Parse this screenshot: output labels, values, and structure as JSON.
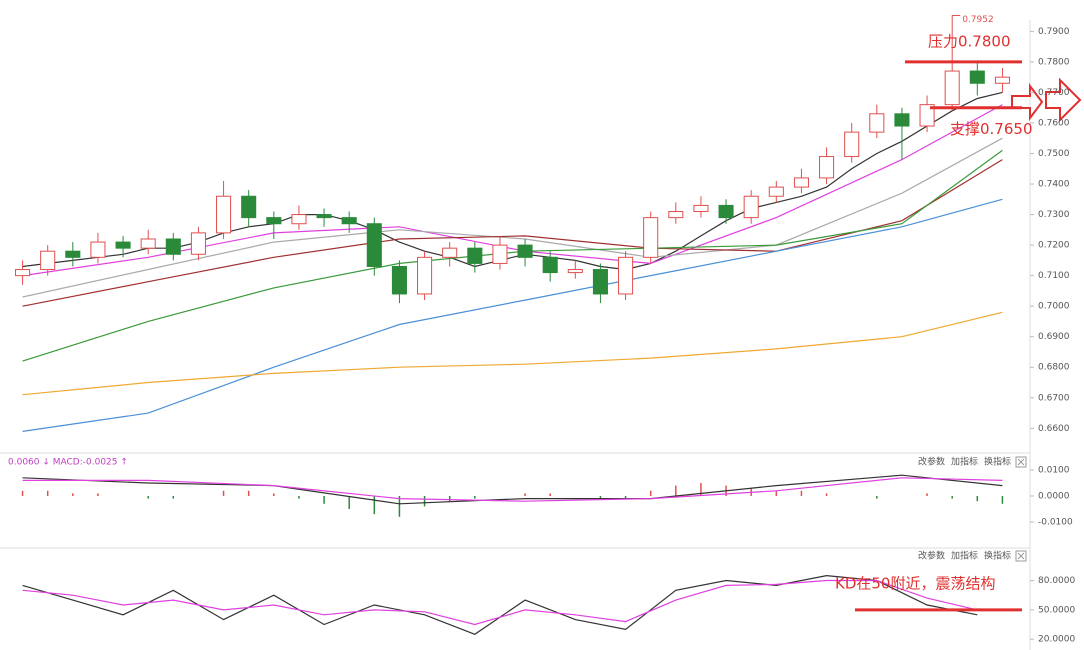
{
  "chart_data": [
    {
      "type": "candlestick",
      "open": [
        0.71,
        0.712,
        0.718,
        0.716,
        0.721,
        0.719,
        0.722,
        0.717,
        0.724,
        0.736,
        0.729,
        0.727,
        0.73,
        0.729,
        0.727,
        0.713,
        0.704,
        0.716,
        0.719,
        0.714,
        0.72,
        0.716,
        0.711,
        0.712,
        0.704,
        0.716,
        0.729,
        0.731,
        0.733,
        0.729,
        0.736,
        0.739,
        0.742,
        0.749,
        0.757,
        0.763,
        0.759,
        0.766,
        0.777,
        0.773
      ],
      "high": [
        0.715,
        0.72,
        0.721,
        0.724,
        0.723,
        0.725,
        0.724,
        0.726,
        0.741,
        0.738,
        0.731,
        0.733,
        0.732,
        0.731,
        0.729,
        0.715,
        0.718,
        0.721,
        0.721,
        0.723,
        0.722,
        0.718,
        0.715,
        0.714,
        0.718,
        0.731,
        0.734,
        0.736,
        0.735,
        0.738,
        0.741,
        0.745,
        0.752,
        0.76,
        0.766,
        0.765,
        0.769,
        0.7952,
        0.78,
        0.778
      ],
      "low": [
        0.707,
        0.71,
        0.713,
        0.714,
        0.716,
        0.717,
        0.715,
        0.715,
        0.722,
        0.726,
        0.722,
        0.725,
        0.726,
        0.724,
        0.71,
        0.701,
        0.702,
        0.713,
        0.711,
        0.712,
        0.713,
        0.708,
        0.709,
        0.701,
        0.702,
        0.714,
        0.727,
        0.729,
        0.727,
        0.727,
        0.734,
        0.737,
        0.74,
        0.747,
        0.755,
        0.748,
        0.757,
        0.764,
        0.769,
        0.77
      ],
      "close": [
        0.712,
        0.718,
        0.716,
        0.721,
        0.719,
        0.722,
        0.717,
        0.724,
        0.736,
        0.729,
        0.727,
        0.73,
        0.729,
        0.727,
        0.713,
        0.704,
        0.716,
        0.719,
        0.714,
        0.72,
        0.716,
        0.711,
        0.712,
        0.704,
        0.716,
        0.729,
        0.731,
        0.733,
        0.729,
        0.736,
        0.739,
        0.742,
        0.749,
        0.757,
        0.763,
        0.759,
        0.766,
        0.777,
        0.773,
        0.775
      ],
      "up_color": "#e0504e",
      "down_color": "#2a8a3a",
      "lines": [
        {
          "color": "#333333",
          "values": [
            0.713,
            0.714,
            0.715,
            0.716,
            0.717,
            0.719,
            0.719,
            0.721,
            0.724,
            0.726,
            0.727,
            0.73,
            0.73,
            0.728,
            0.725,
            0.721,
            0.718,
            0.716,
            0.713,
            0.715,
            0.717,
            0.716,
            0.715,
            0.713,
            0.712,
            0.714,
            0.718,
            0.723,
            0.728,
            0.732,
            0.734,
            0.736,
            0.739,
            0.745,
            0.75,
            0.754,
            0.759,
            0.764,
            0.768,
            0.77
          ]
        },
        {
          "color": "#e040e0",
          "x": [
            0,
            5,
            10,
            15,
            20,
            25,
            30,
            35,
            39
          ],
          "values": [
            0.71,
            0.716,
            0.724,
            0.726,
            0.718,
            0.714,
            0.729,
            0.748,
            0.766
          ]
        },
        {
          "color": "#aaaaaa",
          "x": [
            0,
            5,
            10,
            15,
            20,
            25,
            30,
            35,
            39
          ],
          "values": [
            0.703,
            0.712,
            0.721,
            0.725,
            0.722,
            0.716,
            0.72,
            0.737,
            0.755
          ]
        },
        {
          "color": "#a03030",
          "x": [
            0,
            5,
            10,
            15,
            20,
            25,
            30,
            35,
            39
          ],
          "values": [
            0.7,
            0.708,
            0.716,
            0.722,
            0.723,
            0.719,
            0.718,
            0.728,
            0.748
          ]
        },
        {
          "color": "#3a9a3a",
          "x": [
            0,
            5,
            10,
            15,
            20,
            25,
            30,
            35,
            39
          ],
          "values": [
            0.682,
            0.695,
            0.706,
            0.714,
            0.718,
            0.719,
            0.72,
            0.727,
            0.751
          ]
        },
        {
          "color": "#4a90d9",
          "x": [
            0,
            5,
            10,
            15,
            20,
            25,
            30,
            35,
            39
          ],
          "values": [
            0.659,
            0.665,
            0.68,
            0.694,
            0.702,
            0.71,
            0.718,
            0.726,
            0.735
          ]
        },
        {
          "color": "#f0a830",
          "x": [
            0,
            5,
            10,
            15,
            20,
            25,
            30,
            35,
            39
          ],
          "values": [
            0.671,
            0.675,
            0.678,
            0.68,
            0.681,
            0.683,
            0.686,
            0.69,
            0.698
          ]
        }
      ],
      "ylim": [
        0.6529,
        0.7911
      ],
      "yticks": [
        {
          "value": 0.79,
          "label": "0.7900"
        },
        {
          "value": 0.78,
          "label": "0.7800"
        },
        {
          "value": 0.77,
          "label": "0.7700"
        },
        {
          "value": 0.76,
          "label": "0.7600"
        },
        {
          "value": 0.75,
          "label": "0.7500"
        },
        {
          "value": 0.74,
          "label": "0.7400"
        },
        {
          "value": 0.73,
          "label": "0.7300"
        },
        {
          "value": 0.72,
          "label": "0.7200"
        },
        {
          "value": 0.71,
          "label": "0.7100"
        },
        {
          "value": 0.7,
          "label": "0.7000"
        },
        {
          "value": 0.69,
          "label": "0.6900"
        },
        {
          "value": 0.68,
          "label": "0.6800"
        },
        {
          "value": 0.67,
          "label": "0.6700"
        },
        {
          "value": 0.66,
          "label": "0.6600"
        }
      ],
      "annotations": [
        {
          "text": "压力0.7800",
          "value": 0.78
        },
        {
          "text": "支撑0.7650",
          "value": 0.765
        }
      ]
    },
    {
      "type": "macd",
      "header": "0.0060 ↓ MACD:-0.0025 ↑",
      "buttons": [
        "改参数",
        "加指标",
        "换指标"
      ],
      "lines": [
        {
          "color": "#333333",
          "x": [
            0,
            5,
            10,
            15,
            20,
            25,
            30,
            35,
            39
          ],
          "values": [
            0.007,
            0.005,
            0.004,
            -0.003,
            -0.001,
            -0.001,
            0.004,
            0.008,
            0.004
          ]
        },
        {
          "color": "#e040e0",
          "x": [
            0,
            5,
            10,
            15,
            20,
            25,
            30,
            35,
            39
          ],
          "values": [
            0.006,
            0.006,
            0.004,
            -0.001,
            -0.002,
            -0.001,
            0.002,
            0.007,
            0.006
          ]
        }
      ],
      "histogram": [
        0.002,
        0.002,
        0.001,
        0.001,
        0.0,
        -0.001,
        -0.001,
        0.0,
        0.002,
        0.002,
        0.001,
        -0.001,
        -0.003,
        -0.005,
        -0.007,
        -0.008,
        -0.004,
        -0.002,
        -0.001,
        0.0,
        0.001,
        0.001,
        0.0,
        -0.001,
        -0.001,
        0.002,
        0.004,
        0.005,
        0.004,
        0.003,
        0.002,
        0.002,
        0.001,
        0.0,
        -0.001,
        0.0,
        0.001,
        -0.001,
        -0.002,
        -0.003
      ],
      "ylim": [
        -0.02,
        0.0146
      ],
      "yticks": [
        {
          "value": 0.01,
          "label": "0.0100"
        },
        {
          "value": 0,
          "label": "0.0000"
        },
        {
          "value": -0.01,
          "label": "-0.0100"
        }
      ]
    },
    {
      "type": "kd",
      "buttons": [
        "改参数",
        "加指标",
        "换指标"
      ],
      "lines": [
        {
          "color": "#333333",
          "x": [
            0,
            2,
            4,
            6,
            8,
            10,
            12,
            14,
            16,
            18,
            20,
            22,
            24,
            26,
            28,
            30,
            32,
            34,
            36,
            38
          ],
          "values": [
            75,
            60,
            45,
            70,
            40,
            65,
            35,
            55,
            45,
            25,
            60,
            40,
            30,
            70,
            80,
            75,
            85,
            80,
            55,
            45
          ]
        },
        {
          "color": "#e040e0",
          "x": [
            0,
            2,
            4,
            6,
            8,
            10,
            12,
            14,
            16,
            18,
            20,
            22,
            24,
            26,
            28,
            30,
            32,
            34,
            36,
            38
          ],
          "values": [
            70,
            65,
            55,
            60,
            50,
            55,
            45,
            50,
            48,
            35,
            50,
            45,
            38,
            60,
            75,
            76,
            80,
            80,
            62,
            50
          ]
        }
      ],
      "ylim": [
        11,
        101
      ],
      "yticks": [
        {
          "value": 80,
          "label": "80.0000"
        },
        {
          "value": 50,
          "label": "50.0000"
        },
        {
          "value": 20,
          "label": "20.0000"
        }
      ],
      "annotations": [
        {
          "text": "KD在50附近，震荡结构",
          "value": 50
        }
      ]
    }
  ]
}
